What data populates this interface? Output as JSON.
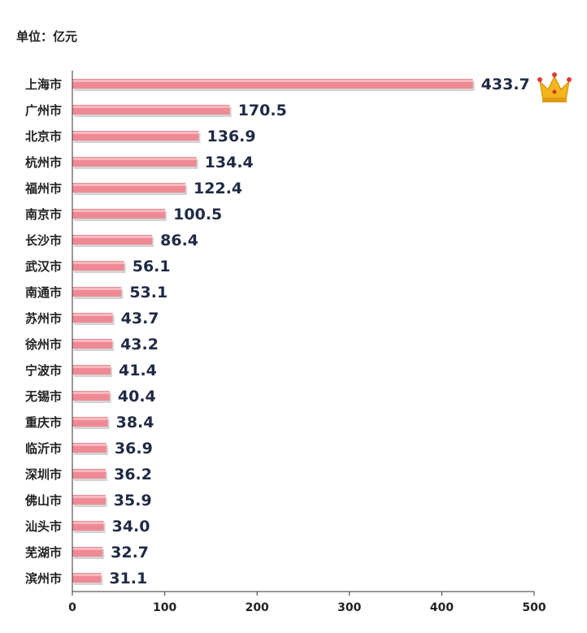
{
  "unit_label": "单位：亿元",
  "colors": {
    "bar": "#ee8a94",
    "bar_highlight": "#f7c3c8",
    "bar_shadow": "#b8b8b8",
    "axis": "#333333",
    "crown": "#f2b51c"
  },
  "top_icon": "crown-icon",
  "chart_data": {
    "type": "bar",
    "orientation": "horizontal",
    "categories": [
      "上海市",
      "广州市",
      "北京市",
      "杭州市",
      "福州市",
      "南京市",
      "长沙市",
      "武汉市",
      "南通市",
      "苏州市",
      "徐州市",
      "宁波市",
      "无锡市",
      "重庆市",
      "临沂市",
      "深圳市",
      "佛山市",
      "汕头市",
      "芜湖市",
      "滨州市"
    ],
    "values": [
      433.7,
      170.5,
      136.9,
      134.4,
      122.4,
      100.5,
      86.4,
      56.1,
      53.1,
      43.7,
      43.2,
      41.4,
      40.4,
      38.4,
      36.9,
      36.2,
      35.9,
      34.0,
      32.7,
      31.1
    ],
    "value_labels": [
      "433.7",
      "170.5",
      "136.9",
      "134.4",
      "122.4",
      "100.5",
      "86.4",
      "56.1",
      "53.1",
      "43.7",
      "43.2",
      "41.4",
      "40.4",
      "38.4",
      "36.9",
      "36.2",
      "35.9",
      "34.0",
      "32.7",
      "31.1"
    ],
    "xlim": [
      0,
      500
    ],
    "xticks": [
      0,
      100,
      200,
      300,
      400,
      500
    ],
    "grid": false,
    "legend": "none"
  }
}
